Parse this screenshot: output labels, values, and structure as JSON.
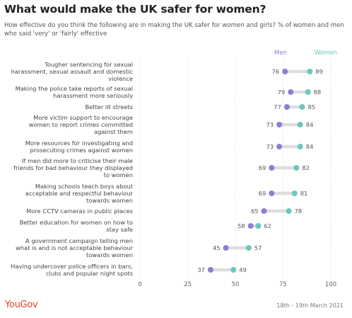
{
  "title": "What would make the UK safer for women?",
  "subtitle": "How effective do you think the following are in making the UK safer for women and girls? % of women and men who said 'very' or 'fairly' effective",
  "logo": "YouGov",
  "date": "18th - 19th March 2021",
  "colors": {
    "men": "#8a7fd4",
    "women": "#6cc7be",
    "connector": "#dddddd",
    "grid": "#d8d8d8"
  },
  "chart_data": {
    "type": "dumbbell",
    "xlim": [
      0,
      100
    ],
    "xticks": [
      "0",
      "25",
      "50",
      "75",
      "100"
    ],
    "legend": {
      "men": "Men",
      "women": "Women",
      "placement": "top-right"
    },
    "categories": [
      [
        "Tougher sentencing for sexual",
        "harassment, sexual assault and domestic",
        "violence"
      ],
      [
        "Making the police take reports of sexual",
        "harassment more seriously"
      ],
      [
        "Better lit streets"
      ],
      [
        "More victim support to encourage",
        "women to report crimes committed",
        "against them"
      ],
      [
        "More resources for investigating and",
        "prosecuting crimes against women"
      ],
      [
        "If men did more to criticise their male",
        "friends for bad behaviour they displayed",
        "to women"
      ],
      [
        "Making schools teach boys about",
        "acceptable and respectful behaviour",
        "towards women"
      ],
      [
        "More CCTV cameras in public places"
      ],
      [
        "Better education for women on how to",
        "stay safe"
      ],
      [
        "A government campaign telling men",
        "what is and is not acceptable behaviour",
        "towards women"
      ],
      [
        "Having undercover police officers in bars,",
        "clubs and popular night spots"
      ]
    ],
    "series": [
      {
        "name": "Men",
        "values": [
          76,
          79,
          77,
          73,
          73,
          69,
          69,
          65,
          58,
          45,
          37
        ]
      },
      {
        "name": "Women",
        "values": [
          89,
          88,
          85,
          84,
          84,
          82,
          81,
          78,
          62,
          57,
          49
        ]
      }
    ]
  }
}
